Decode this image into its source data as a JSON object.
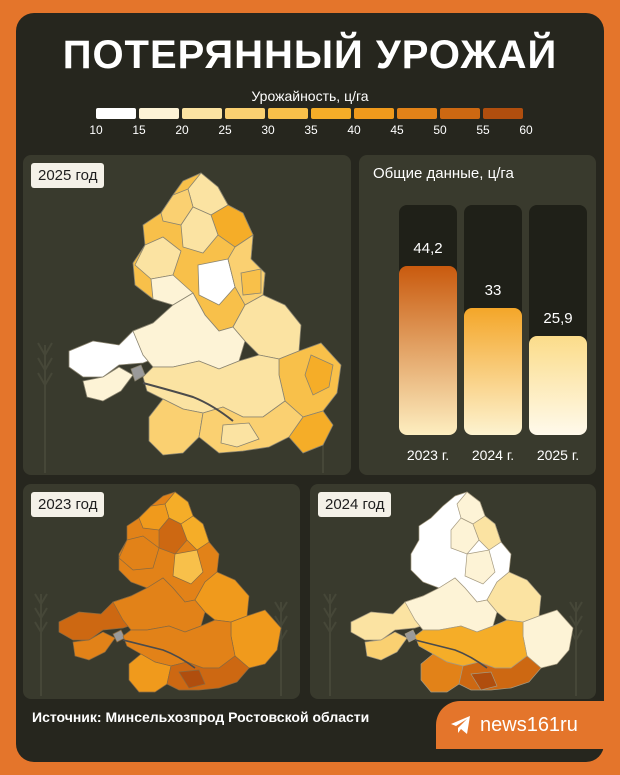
{
  "title": "ПОТЕРЯННЫЙ УРОЖАЙ",
  "legend": {
    "title": "Урожайность, ц/га",
    "ticks": [
      "10",
      "15",
      "20",
      "25",
      "30",
      "35",
      "40",
      "45",
      "50",
      "55",
      "60"
    ],
    "colors": [
      "#ffffff",
      "#fdf3d6",
      "#fbe3a2",
      "#fad071",
      "#f8c04a",
      "#f5ad28",
      "#f09a1c",
      "#e28218",
      "#cd6812",
      "#b04e0e"
    ]
  },
  "maps": {
    "map_2025": {
      "label": "2025 год"
    },
    "map_2023": {
      "label": "2023 год"
    },
    "map_2024": {
      "label": "2024 год"
    }
  },
  "summary": {
    "label": "Общие данные, ц/га"
  },
  "chart_data": {
    "type": "bar",
    "title": "Общие данные, ц/га",
    "categories": [
      "2023 г.",
      "2024 г.",
      "2025 г."
    ],
    "values": [
      44.2,
      33,
      25.9
    ],
    "value_labels": [
      "44,2",
      "33",
      "25,9"
    ],
    "bar_colors": [
      [
        "#c95a0e",
        "#fdeec0"
      ],
      [
        "#f4a629",
        "#fdf3d0"
      ],
      [
        "#fbdc8a",
        "#fffaeb"
      ]
    ],
    "ylim": [
      0,
      60
    ]
  },
  "source": "Источник: Минсельхозпрод Ростовской области",
  "brand": {
    "name": "news161ru",
    "icon": "telegram-icon"
  }
}
